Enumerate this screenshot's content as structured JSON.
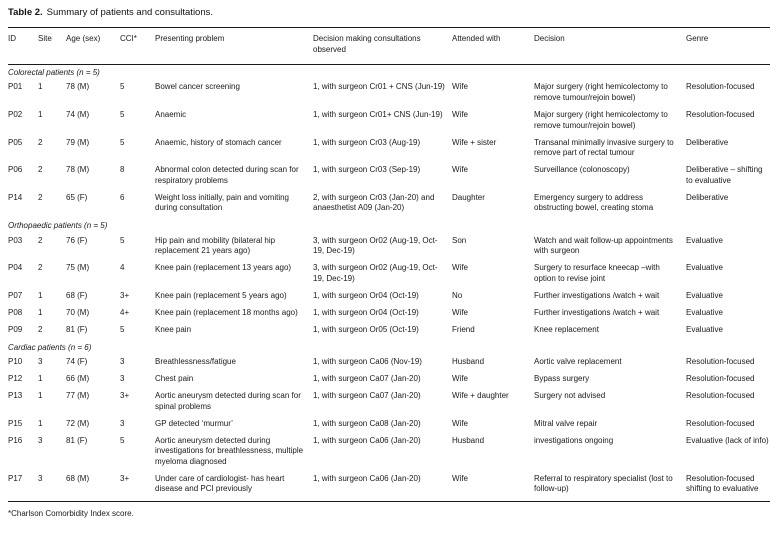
{
  "caption": {
    "label": "Table 2.",
    "text": "Summary of patients and consultations."
  },
  "columns": [
    "ID",
    "Site",
    "Age (sex)",
    "CCI*",
    "Presenting problem",
    "Decision making consultations observed",
    "Attended with",
    "Decision",
    "Genre"
  ],
  "sections": [
    {
      "header": "Colorectal patients (n = 5)",
      "rows": [
        {
          "id": "P01",
          "site": "1",
          "age": "78 (M)",
          "cci": "5",
          "problem": "Bowel cancer screening",
          "consultations": "1, with surgeon Cr01 + CNS (Jun-19)",
          "attended": "Wife",
          "decision": "Major surgery (right hemicolectomy to remove tumour/rejoin bowel)",
          "genre": "Resolution-focused"
        },
        {
          "id": "P02",
          "site": "1",
          "age": "74 (M)",
          "cci": "5",
          "problem": "Anaemic",
          "consultations": "1, with surgeon Cr01+ CNS (Jun-19)",
          "attended": "Wife",
          "decision": "Major surgery (right hemicolectomy to remove tumour/rejoin bowel)",
          "genre": "Resolution-focused"
        },
        {
          "id": "P05",
          "site": "2",
          "age": "79 (M)",
          "cci": "5",
          "problem": "Anaemic, history of stomach cancer",
          "consultations": "1, with surgeon Cr03 (Aug-19)",
          "attended": "Wife + sister",
          "decision": "Transanal minimally invasive surgery to remove part of rectal tumour",
          "genre": "Deliberative"
        },
        {
          "id": "P06",
          "site": "2",
          "age": "78 (M)",
          "cci": "8",
          "problem": "Abnormal colon detected during scan for respiratory problems",
          "consultations": "1, with surgeon Cr03 (Sep-19)",
          "attended": "Wife",
          "decision": "Surveillance (colonoscopy)",
          "genre": "Deliberative – shifting to evaluative"
        },
        {
          "id": "P14",
          "site": "2",
          "age": "65 (F)",
          "cci": "6",
          "problem": "Weight loss initially, pain and vomiting during consultation",
          "consultations": "2, with surgeon Cr03 (Jan-20) and anaesthetist A09 (Jan-20)",
          "attended": "Daughter",
          "decision": "Emergency surgery to address obstructing bowel, creating stoma",
          "genre": "Deliberative"
        }
      ]
    },
    {
      "header": "Orthopaedic patients (n = 5)",
      "rows": [
        {
          "id": "P03",
          "site": "2",
          "age": "76 (F)",
          "cci": "5",
          "problem": "Hip pain and mobility (bilateral hip replacement 21 years ago)",
          "consultations": "3, with surgeon Or02 (Aug-19, Oct-19, Dec-19)",
          "attended": "Son",
          "decision": "Watch and wait follow-up appointments with surgeon",
          "genre": "Evaluative"
        },
        {
          "id": "P04",
          "site": "2",
          "age": "75 (M)",
          "cci": "4",
          "problem": "Knee pain (replacement 13 years ago)",
          "consultations": "3, with surgeon Or02 (Aug-19, Oct-19, Dec-19)",
          "attended": "Wife",
          "decision": "Surgery to resurface kneecap –with option to revise joint",
          "genre": "Evaluative"
        },
        {
          "id": "P07",
          "site": "1",
          "age": "68 (F)",
          "cci": "3+",
          "problem": "Knee pain (replacement 5 years ago)",
          "consultations": "1, with surgeon Or04 (Oct-19)",
          "attended": "No",
          "decision": "Further investigations /watch + wait",
          "genre": "Evaluative"
        },
        {
          "id": "P08",
          "site": "1",
          "age": "70 (M)",
          "cci": "4+",
          "problem": "Knee pain (replacement 18 months ago)",
          "consultations": "1, with surgeon Or04 (Oct-19)",
          "attended": "Wife",
          "decision": "Further investigations /watch + wait",
          "genre": "Evaluative"
        },
        {
          "id": "P09",
          "site": "2",
          "age": "81 (F)",
          "cci": "5",
          "problem": "Knee pain",
          "consultations": "1, with surgeon Or05 (Oct-19)",
          "attended": "Friend",
          "decision": "Knee replacement",
          "genre": "Evaluative"
        }
      ]
    },
    {
      "header": "Cardiac patients (n = 6)",
      "rows": [
        {
          "id": "P10",
          "site": "3",
          "age": "74 (F)",
          "cci": "3",
          "problem": "Breathlessness/fatigue",
          "consultations": "1, with surgeon Ca06 (Nov-19)",
          "attended": "Husband",
          "decision": "Aortic valve replacement",
          "genre": "Resolution-focused"
        },
        {
          "id": "P12",
          "site": "1",
          "age": "66 (M)",
          "cci": "3",
          "problem": "Chest pain",
          "consultations": "1, with surgeon Ca07 (Jan-20)",
          "attended": "Wife",
          "decision": "Bypass surgery",
          "genre": "Resolution-focused"
        },
        {
          "id": "P13",
          "site": "1",
          "age": "77 (M)",
          "cci": "3+",
          "problem": "Aortic aneurysm detected during scan for spinal problems",
          "consultations": "1, with surgeon Ca07 (Jan-20)",
          "attended": "Wife + daughter",
          "decision": "Surgery not advised",
          "genre": "Resolution-focused"
        },
        {
          "id": "P15",
          "site": "1",
          "age": "72 (M)",
          "cci": "3",
          "problem": "GP detected ‘murmur’",
          "consultations": "1, with surgeon Ca08 (Jan-20)",
          "attended": "Wife",
          "decision": "Mitral valve repair",
          "genre": "Resolution-focused"
        },
        {
          "id": "P16",
          "site": "3",
          "age": "81 (F)",
          "cci": "5",
          "problem": "Aortic aneurysm detected during investigations for breathlessness, multiple myeloma diagnosed",
          "consultations": "1, with surgeon Ca06 (Jan-20)",
          "attended": "Husband",
          "decision": "investigations ongoing",
          "genre": "Evaluative (lack of info)"
        },
        {
          "id": "P17",
          "site": "3",
          "age": "68 (M)",
          "cci": "3+",
          "problem": "Under care of cardiologist- has heart disease and PCI previously",
          "consultations": "1, with surgeon Ca06 (Jan-20)",
          "attended": "Wife",
          "decision": "Referral to respiratory specialist (lost to follow-up)",
          "genre": "Resolution-focused shifting to evaluative"
        }
      ]
    }
  ],
  "footnote": "*Charlson Comorbidity Index score."
}
